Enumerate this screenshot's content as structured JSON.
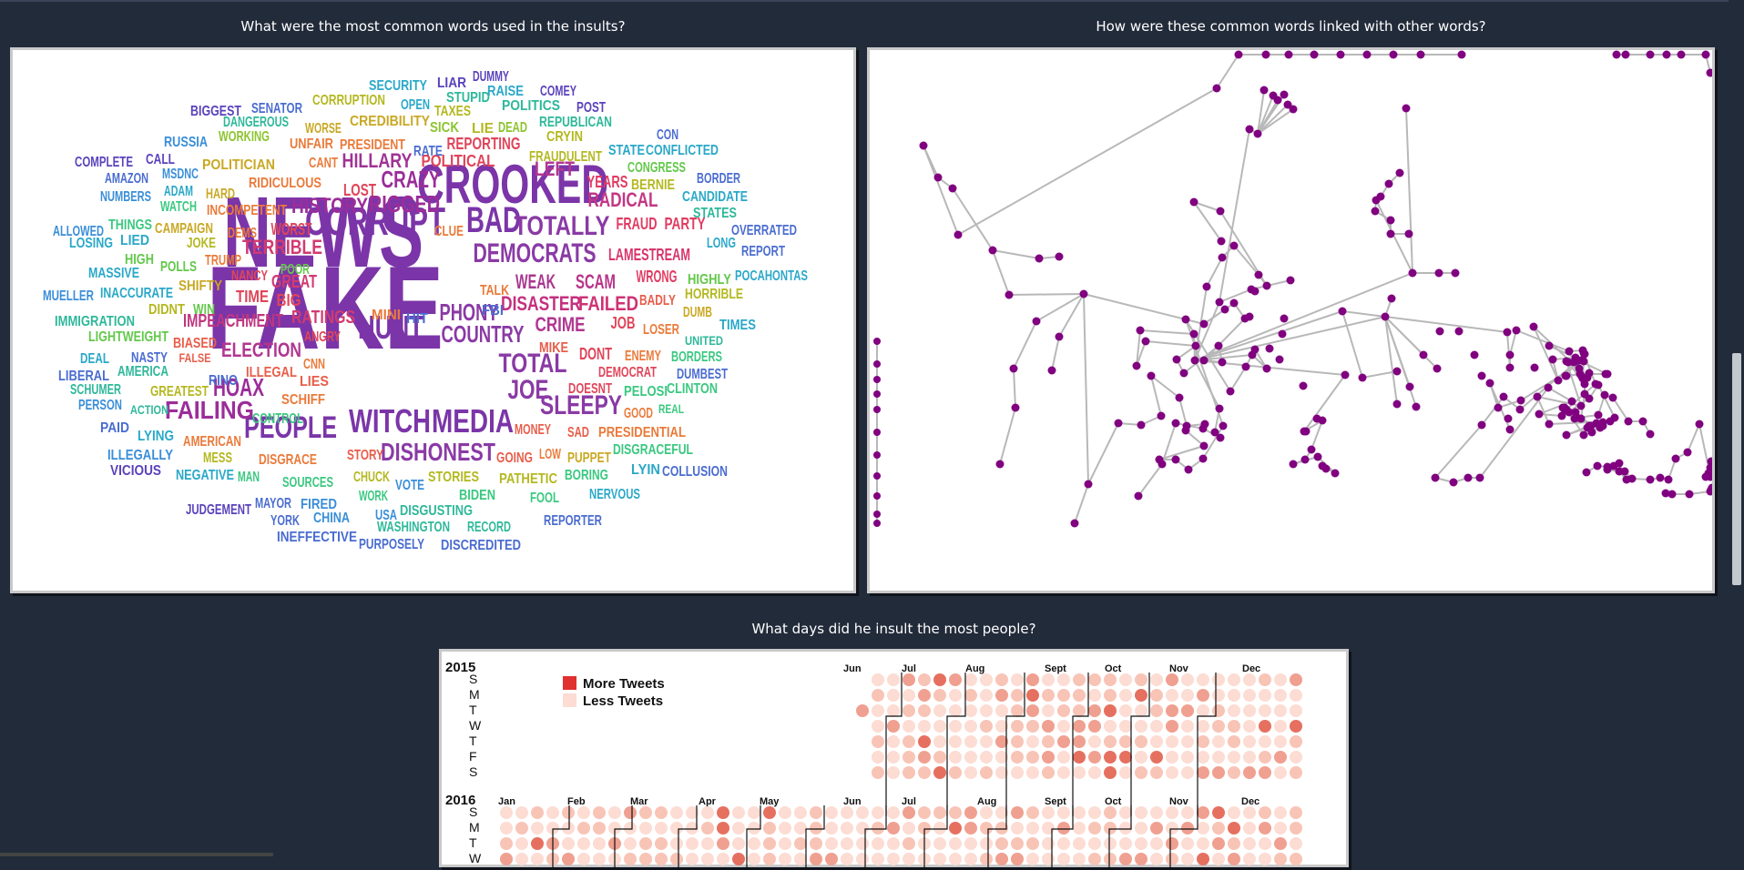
{
  "questions": {
    "words": "What were the most common words used in the insults?",
    "links": "How were these common words linked with other words?",
    "days": "What days did he insult the most people?"
  },
  "word_cloud": {
    "words": [
      [
        "FAKE",
        130,
        "#7b35a8"
      ],
      [
        "NEWS",
        110,
        "#7b35a8"
      ],
      [
        "CROOKED",
        60,
        "#7b35a8"
      ],
      [
        "CORRUPT",
        44,
        "#7b35a8"
      ],
      [
        "BAD",
        40,
        "#7b35a8"
      ],
      [
        "HUNT",
        36,
        "#7b35a8"
      ],
      [
        "WITCH",
        36,
        "#7b35a8"
      ],
      [
        "MEDIA",
        36,
        "#7b35a8"
      ],
      [
        "PEOPLE",
        34,
        "#7b35a8"
      ],
      [
        "TOTALLY",
        30,
        "#8a3aa5"
      ],
      [
        "DEMOCRATS",
        30,
        "#8a3aa5"
      ],
      [
        "SLEEPY",
        30,
        "#8a3aa5"
      ],
      [
        "TOTAL",
        30,
        "#8a3aa5"
      ],
      [
        "JOE",
        30,
        "#8a3aa5"
      ],
      [
        "DISHONEST",
        28,
        "#8a3aa5"
      ],
      [
        "COUNTRY",
        26,
        "#8a3aa5"
      ],
      [
        "PHONY",
        26,
        "#8a3aa5"
      ],
      [
        "HOAX",
        28,
        "#9b2d9a"
      ],
      [
        "FAILING",
        28,
        "#9b2d9a"
      ],
      [
        "RIGGED",
        26,
        "#9b2d9a"
      ],
      [
        "CRAZY",
        26,
        "#9b2d9a"
      ],
      [
        "HISTORY",
        24,
        "#9b2d9a"
      ],
      [
        "HILLARY",
        22,
        "#a03395"
      ],
      [
        "WEAK",
        22,
        "#a8368f"
      ],
      [
        "SCAM",
        22,
        "#b8348a"
      ],
      [
        "DISASTER",
        22,
        "#c4307f"
      ],
      [
        "FAILED",
        22,
        "#cf3275"
      ],
      [
        "CRIME",
        22,
        "#b23690"
      ],
      [
        "RADICAL",
        22,
        "#c33784"
      ],
      [
        "LEFT",
        22,
        "#b23690"
      ],
      [
        "ELECTION",
        22,
        "#b23690"
      ],
      [
        "IMPEACHMENT",
        20,
        "#c0367f"
      ],
      [
        "TERRIBLE",
        22,
        "#d13b72"
      ],
      [
        "GREAT",
        20,
        "#d13b72"
      ],
      [
        "RATINGS",
        20,
        "#d13b72"
      ],
      [
        "LAMESTREAM",
        18,
        "#d8356b"
      ],
      [
        "WRONG",
        18,
        "#e23b62"
      ],
      [
        "FRAUD",
        18,
        "#e23b62"
      ],
      [
        "PARTY",
        18,
        "#e23b62"
      ],
      [
        "YEARS",
        18,
        "#e23b62"
      ],
      [
        "REPORTING",
        18,
        "#e0455a"
      ],
      [
        "POLITICAL",
        18,
        "#e0455a"
      ],
      [
        "LOST",
        18,
        "#e0455a"
      ],
      [
        "WORST",
        18,
        "#e0455a"
      ],
      [
        "TIME",
        18,
        "#e0455a"
      ],
      [
        "BIG",
        18,
        "#e0455a"
      ],
      [
        "NANCY",
        16,
        "#e0455a"
      ],
      [
        "ANGRY",
        16,
        "#e0455a"
      ],
      [
        "DONT",
        18,
        "#e0455a"
      ],
      [
        "DEMOCRAT",
        16,
        "#e0455a"
      ],
      [
        "DOESNT",
        16,
        "#e0455a"
      ],
      [
        "MONEY",
        16,
        "#e85d4a"
      ],
      [
        "SAD",
        16,
        "#e85d4a"
      ],
      [
        "STORY",
        16,
        "#e85d4a"
      ],
      [
        "GOING",
        16,
        "#e85d4a"
      ],
      [
        "JOB",
        18,
        "#e0455a"
      ],
      [
        "BADLY",
        16,
        "#e85d4a"
      ],
      [
        "MIKE",
        16,
        "#e85d4a"
      ],
      [
        "ILLEGAL",
        16,
        "#e85d4a"
      ],
      [
        "LIES",
        16,
        "#e85d4a"
      ],
      [
        "BIASED",
        16,
        "#e85d4a"
      ],
      [
        "FALSE",
        14,
        "#e85d4a"
      ],
      [
        "RIDICULOUS",
        16,
        "#ea7a3a"
      ],
      [
        "INCOMPETENT",
        16,
        "#ea7a3a"
      ],
      [
        "DEMS",
        16,
        "#ea7a3a"
      ],
      [
        "PRESIDENT",
        16,
        "#ea7a3a"
      ],
      [
        "UNFAIR",
        16,
        "#ea7a3a"
      ],
      [
        "CANT",
        16,
        "#ea7a3a"
      ],
      [
        "CLUE",
        16,
        "#ea7a3a"
      ],
      [
        "TRUMP",
        16,
        "#ea7a3a"
      ],
      [
        "MINI",
        16,
        "#ea7a3a"
      ],
      [
        "CNN",
        16,
        "#ea7a3a"
      ],
      [
        "SCHIFF",
        16,
        "#ea7a3a"
      ],
      [
        "DISGRACE",
        16,
        "#ea7a3a"
      ],
      [
        "LOW",
        16,
        "#ea7a3a"
      ],
      [
        "PRESIDENTIAL",
        16,
        "#ea7a3a"
      ],
      [
        "ENEMY",
        16,
        "#ea7a3a"
      ],
      [
        "AMERICAN",
        16,
        "#ea7a3a"
      ],
      [
        "TALK",
        16,
        "#ea7a3a"
      ],
      [
        "LOSER",
        16,
        "#ea7a3a"
      ],
      [
        "GOOD",
        16,
        "#ea7a3a"
      ],
      [
        "DUMB",
        16,
        "#c9a824"
      ],
      [
        "PUPPET",
        16,
        "#c9a824"
      ],
      [
        "SHIFTY",
        16,
        "#c9a824"
      ],
      [
        "POLITICIAN",
        16,
        "#c9a824"
      ],
      [
        "HARD",
        16,
        "#c9a824"
      ],
      [
        "CAMPAIGN",
        16,
        "#c9a824"
      ],
      [
        "WORSE",
        16,
        "#c9a824"
      ],
      [
        "CREDIBILITY",
        16,
        "#c9a824"
      ],
      [
        "CORRUPTION",
        16,
        "#b4b820"
      ],
      [
        "TAXES",
        16,
        "#b4b820"
      ],
      [
        "LIE",
        16,
        "#b4b820"
      ],
      [
        "FRAUDULENT",
        16,
        "#b4b820"
      ],
      [
        "CRYIN",
        16,
        "#b4b820"
      ],
      [
        "BERNIE",
        16,
        "#b4b820"
      ],
      [
        "HORRIBLE",
        16,
        "#b4b820"
      ],
      [
        "MESS",
        16,
        "#b4b820"
      ],
      [
        "GREATEST",
        16,
        "#b4b820"
      ],
      [
        "CHUCK",
        16,
        "#b4b820"
      ],
      [
        "STORIES",
        16,
        "#b4b820"
      ],
      [
        "PATHETIC",
        16,
        "#b4b820"
      ],
      [
        "DIDNT",
        16,
        "#b4b820"
      ],
      [
        "JOKE",
        16,
        "#b4b820"
      ],
      [
        "WORKING",
        16,
        "#8cc42e"
      ],
      [
        "SICK",
        16,
        "#8cc42e"
      ],
      [
        "DEAD",
        16,
        "#8cc42e"
      ],
      [
        "CONGRESS",
        16,
        "#62c84a"
      ],
      [
        "HIGHLY",
        16,
        "#62c84a"
      ],
      [
        "LIGHTWEIGHT",
        16,
        "#62c84a"
      ],
      [
        "POOR",
        16,
        "#62c84a"
      ],
      [
        "WIN",
        16,
        "#62c84a"
      ],
      [
        "POLLS",
        16,
        "#62c84a"
      ],
      [
        "HIGH",
        16,
        "#62c84a"
      ],
      [
        "WATCH",
        16,
        "#3ac880"
      ],
      [
        "THINGS",
        16,
        "#3ac880"
      ],
      [
        "CONTROL",
        16,
        "#3ac880"
      ],
      [
        "MAN",
        16,
        "#3ac880"
      ],
      [
        "SOURCES",
        16,
        "#3ac880"
      ],
      [
        "WORK",
        16,
        "#3ac880"
      ],
      [
        "BIDEN",
        16,
        "#3ac880"
      ],
      [
        "FOOL",
        16,
        "#3ac880"
      ],
      [
        "BORING",
        16,
        "#3ac880"
      ],
      [
        "BORDERS",
        16,
        "#3ac880"
      ],
      [
        "CLINTON",
        16,
        "#3ac880"
      ],
      [
        "PELOSI",
        16,
        "#3ac880"
      ],
      [
        "REAL",
        14,
        "#3ac880"
      ],
      [
        "DISGRACEFUL",
        16,
        "#3ac880"
      ],
      [
        "DANGEROUS",
        16,
        "#2eb89a"
      ],
      [
        "STUPID",
        16,
        "#2eb89a"
      ],
      [
        "REPUBLICAN",
        16,
        "#2eb89a"
      ],
      [
        "STATES",
        16,
        "#2eb89a"
      ],
      [
        "UNITED",
        14,
        "#2eb89a"
      ],
      [
        "IMMIGRATION",
        16,
        "#2eb89a"
      ],
      [
        "SCHUMER",
        16,
        "#2eb89a"
      ],
      [
        "AMERICA",
        16,
        "#2eb89a"
      ],
      [
        "ACTION",
        14,
        "#2eb89a"
      ],
      [
        "DISGUSTING",
        16,
        "#2eb89a"
      ],
      [
        "WASHINGTON",
        16,
        "#2eb89a"
      ],
      [
        "RECORD",
        16,
        "#2eb89a"
      ],
      [
        "POLITICS",
        16,
        "#2eb89a"
      ],
      [
        "OPEN",
        16,
        "#2aa8c8"
      ],
      [
        "ADAM",
        16,
        "#2aa8c8"
      ],
      [
        "INACCURATE",
        16,
        "#2aa8c8"
      ],
      [
        "CANDIDATE",
        16,
        "#2aa8c8"
      ],
      [
        "STATE",
        16,
        "#2aa8c8"
      ],
      [
        "CONFLICTED",
        16,
        "#2aa8c8"
      ],
      [
        "SECURITY",
        16,
        "#2aa8c8"
      ],
      [
        "RAISE",
        16,
        "#2aa8c8"
      ],
      [
        "LIED",
        16,
        "#2aa8c8"
      ],
      [
        "LOSING",
        16,
        "#2aa8c8"
      ],
      [
        "MASSIVE",
        16,
        "#2aa8c8"
      ],
      [
        "LONG",
        16,
        "#2aa8c8"
      ],
      [
        "POCAHONTAS",
        16,
        "#2aa8c8"
      ],
      [
        "TIMES",
        16,
        "#2aa8c8"
      ],
      [
        "DEAL",
        16,
        "#2aa8c8"
      ],
      [
        "LYING",
        16,
        "#2aa8c8"
      ],
      [
        "NEGATIVE",
        16,
        "#2aa8c8"
      ],
      [
        "NERVOUS",
        16,
        "#2aa8c8"
      ],
      [
        "LYIN",
        16,
        "#2aa8c8"
      ],
      [
        "MSDNC",
        16,
        "#3a8ed8"
      ],
      [
        "NUMBERS",
        16,
        "#3a8ed8"
      ],
      [
        "RUSSIA",
        16,
        "#3a8ed8"
      ],
      [
        "ALLOWED",
        16,
        "#3a8ed8"
      ],
      [
        "MUELLER",
        16,
        "#3a8ed8"
      ],
      [
        "PERSON",
        16,
        "#3a8ed8"
      ],
      [
        "ILLEGALLY",
        16,
        "#3a8ed8"
      ],
      [
        "FIRED",
        16,
        "#3a8ed8"
      ],
      [
        "CHINA",
        16,
        "#3a8ed8"
      ],
      [
        "USA",
        16,
        "#3a8ed8"
      ],
      [
        "VOTE",
        16,
        "#3a8ed8"
      ],
      [
        "AMAZON",
        16,
        "#4a6cd0"
      ],
      [
        "BORDER",
        16,
        "#4a6cd0"
      ],
      [
        "HIT",
        16,
        "#4a6cd0"
      ],
      [
        "FBI",
        16,
        "#4a6cd0"
      ],
      [
        "CON",
        16,
        "#4a6cd0"
      ],
      [
        "RATE",
        16,
        "#4a6cd0"
      ],
      [
        "SENATOR",
        16,
        "#4a6cd0"
      ],
      [
        "NASTY",
        16,
        "#4a6cd0"
      ],
      [
        "LIBERAL",
        16,
        "#4a6cd0"
      ],
      [
        "RINO",
        16,
        "#4a6cd0"
      ],
      [
        "PAID",
        16,
        "#4a6cd0"
      ],
      [
        "MAYOR",
        16,
        "#4a6cd0"
      ],
      [
        "YORK",
        16,
        "#4a6cd0"
      ],
      [
        "INEFFECTIVE",
        16,
        "#4a6cd0"
      ],
      [
        "PURPOSELY",
        16,
        "#4a6cd0"
      ],
      [
        "DISCREDITED",
        16,
        "#4a6cd0"
      ],
      [
        "REPORTER",
        16,
        "#4a6cd0"
      ],
      [
        "COLLUSION",
        16,
        "#4a6cd0"
      ],
      [
        "DUMBEST",
        16,
        "#4a6cd0"
      ],
      [
        "OVERRATED",
        16,
        "#4a6cd0"
      ],
      [
        "REPORT",
        16,
        "#4a6cd0"
      ],
      [
        "COMPLETE",
        16,
        "#5a42bc"
      ],
      [
        "CALL",
        16,
        "#5a42bc"
      ],
      [
        "BIGGEST",
        16,
        "#5a42bc"
      ],
      [
        "LIAR",
        16,
        "#5a42bc"
      ],
      [
        "DUMMY",
        16,
        "#5a42bc"
      ],
      [
        "COMEY",
        16,
        "#5a42bc"
      ],
      [
        "POST",
        16,
        "#5a42bc"
      ],
      [
        "VICIOUS",
        16,
        "#5a42bc"
      ],
      [
        "JUDGEMENT",
        16,
        "#5a42bc"
      ]
    ]
  },
  "network": {
    "node_color": "#800080",
    "edge_color": "#b8b8b8"
  },
  "calendar": {
    "legend_more": "More Tweets",
    "legend_less": "Less Tweets",
    "day_labels": [
      "S",
      "M",
      "T",
      "W",
      "T",
      "F",
      "S"
    ],
    "years": [
      {
        "year": "2015",
        "months": [
          "Jun",
          "Jul",
          "Aug",
          "Sept",
          "Oct",
          "Nov",
          "Dec"
        ]
      },
      {
        "year": "2016",
        "months": [
          "Jan",
          "Feb",
          "Mar",
          "Apr",
          "May",
          "Jun",
          "Jul",
          "Aug",
          "Sept",
          "Oct",
          "Nov",
          "Dec"
        ]
      }
    ],
    "colors": {
      "more": "#e0302f",
      "less": "#fcdcd3"
    }
  }
}
